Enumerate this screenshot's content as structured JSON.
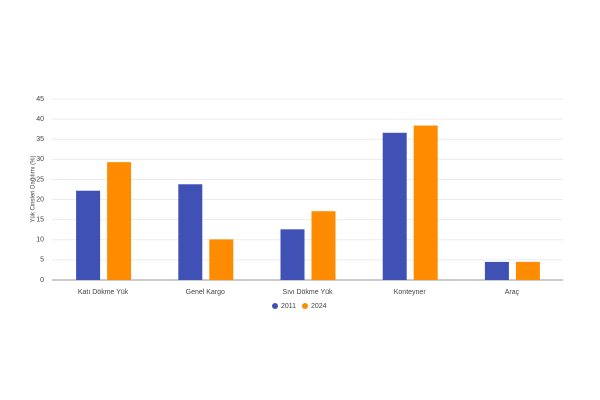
{
  "chart_data": {
    "type": "bar",
    "y_label": "Yük Cinsleri Dağılımı (%)",
    "categories": [
      "Katı Dökme Yük",
      "Genel Kargo",
      "Sıvı Dökme Yük",
      "Konteyner",
      "Araç"
    ],
    "series": [
      {
        "name": "2011",
        "color": "#3f51b5",
        "values": [
          22.2,
          23.8,
          12.6,
          36.6,
          4.5
        ]
      },
      {
        "name": "2024",
        "color": "#ff8c00",
        "values": [
          29.3,
          10.1,
          17.1,
          38.4,
          4.5
        ]
      }
    ],
    "ylim": [
      0,
      45
    ],
    "yticks": [
      0,
      5,
      10,
      15,
      20,
      25,
      30,
      35,
      40,
      45
    ],
    "grid": true
  }
}
